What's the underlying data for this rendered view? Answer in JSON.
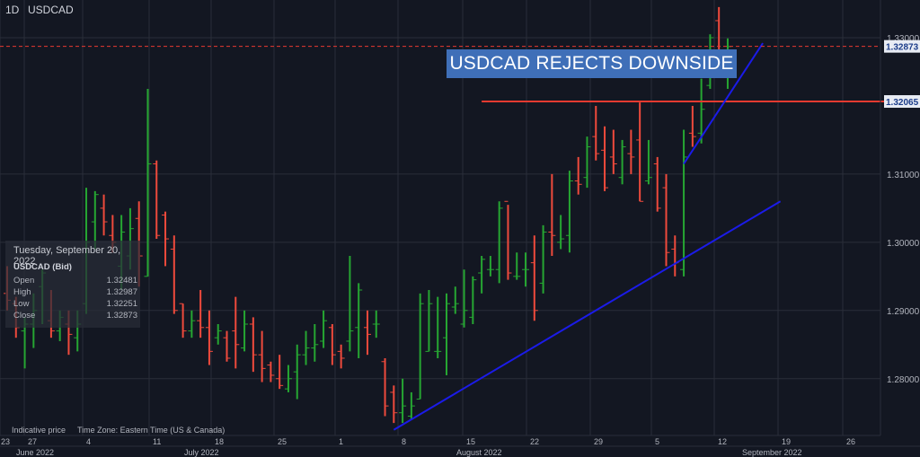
{
  "header": {
    "timeframe": "1D",
    "symbol": "USDCAD"
  },
  "banner": {
    "text": "USDCAD REJECTS DOWNSIDE"
  },
  "ohlc_panel": {
    "date": "Tuesday, September 20, 2022",
    "symbol": "USDCAD (Bid)",
    "rows": [
      {
        "label": "Open",
        "value": "1.32481"
      },
      {
        "label": "High",
        "value": "1.32987"
      },
      {
        "label": "Low",
        "value": "1.32251"
      },
      {
        "label": "Close",
        "value": "1.32873"
      }
    ]
  },
  "footer": {
    "indicative": "Indicative price",
    "timezone": "Time Zone: Eastern Time (US & Canada)"
  },
  "colors": {
    "background": "#131722",
    "up": "#26a632",
    "down": "#ef4a3c",
    "trendline": "#1b1be8",
    "level": "#e83a30",
    "banner": "#3f6fb8"
  },
  "chart_data": {
    "type": "ohlc",
    "symbol": "USDCAD",
    "timeframe": "1D",
    "y_ticks": [
      "1.28000",
      "1.29000",
      "1.30000",
      "1.31000",
      "1.33000"
    ],
    "ylim": [
      1.27,
      1.334
    ],
    "price_tags": [
      {
        "label": "1.32873",
        "value": 1.32873,
        "style": "dashed"
      },
      {
        "label": "1.32065",
        "value": 1.32065,
        "style": "solid"
      }
    ],
    "x_ticks": [
      "23",
      "27",
      "4",
      "11",
      "18",
      "25",
      "1",
      "8",
      "15",
      "22",
      "29",
      "5",
      "12",
      "19",
      "26"
    ],
    "month_labels": [
      "June 2022",
      "July 2022",
      "August 2022",
      "September 2022"
    ],
    "bars": [
      [
        1.2925,
        1.2965,
        1.29,
        1.2915
      ],
      [
        1.291,
        1.292,
        1.286,
        1.2875
      ],
      [
        1.287,
        1.289,
        1.2815,
        1.288
      ],
      [
        1.288,
        1.2925,
        1.2845,
        1.29
      ],
      [
        1.2935,
        1.296,
        1.288,
        1.2955
      ],
      [
        1.2885,
        1.293,
        1.286,
        1.287
      ],
      [
        1.287,
        1.29,
        1.2855,
        1.289
      ],
      [
        1.288,
        1.29,
        1.2835,
        1.2865
      ],
      [
        1.286,
        1.29,
        1.284,
        1.288
      ],
      [
        1.291,
        1.308,
        1.2895,
        1.3
      ],
      [
        1.303,
        1.3075,
        1.299,
        1.307
      ],
      [
        1.305,
        1.307,
        1.301,
        1.303
      ],
      [
        1.301,
        1.304,
        1.2985,
        1.3
      ],
      [
        1.2965,
        1.304,
        1.293,
        1.3015
      ],
      [
        1.298,
        1.305,
        1.296,
        1.302
      ],
      [
        1.3035,
        1.306,
        1.2935,
        1.298
      ],
      [
        1.295,
        1.3225,
        1.295,
        1.3115
      ],
      [
        1.3115,
        1.312,
        1.3005,
        1.301
      ],
      [
        1.304,
        1.3045,
        1.2965,
        1.3005
      ],
      [
        1.299,
        1.301,
        1.2895,
        1.29
      ],
      [
        1.291,
        1.291,
        1.286,
        1.287
      ],
      [
        1.287,
        1.29,
        1.286,
        1.2885
      ],
      [
        1.2885,
        1.293,
        1.286,
        1.2875
      ],
      [
        1.2875,
        1.29,
        1.282,
        1.284
      ],
      [
        1.286,
        1.288,
        1.285,
        1.287
      ],
      [
        1.286,
        1.287,
        1.2825,
        1.283
      ],
      [
        1.287,
        1.292,
        1.2815,
        1.285
      ],
      [
        1.2845,
        1.29,
        1.284,
        1.288
      ],
      [
        1.288,
        1.289,
        1.281,
        1.2835
      ],
      [
        1.2835,
        1.287,
        1.2795,
        1.2815
      ],
      [
        1.282,
        1.2825,
        1.2795,
        1.2805
      ],
      [
        1.28,
        1.2835,
        1.2785,
        1.279
      ],
      [
        1.2785,
        1.282,
        1.278,
        1.28
      ],
      [
        1.281,
        1.285,
        1.277,
        1.2835
      ],
      [
        1.2835,
        1.287,
        1.282,
        1.2845
      ],
      [
        1.2845,
        1.288,
        1.2825,
        1.285
      ],
      [
        1.2855,
        1.29,
        1.2845,
        1.2885
      ],
      [
        1.2875,
        1.288,
        1.282,
        1.2835
      ],
      [
        1.284,
        1.285,
        1.2815,
        1.283
      ],
      [
        1.2855,
        1.298,
        1.284,
        1.287
      ],
      [
        1.2875,
        1.294,
        1.283,
        1.293
      ],
      [
        1.2875,
        1.29,
        1.2835,
        1.2865
      ],
      [
        1.288,
        1.29,
        1.286,
        1.288
      ],
      [
        1.2825,
        1.283,
        1.2745,
        1.276
      ],
      [
        1.278,
        1.279,
        1.2735,
        1.275
      ],
      [
        1.275,
        1.28,
        1.2735,
        1.276
      ],
      [
        1.2745,
        1.278,
        1.274,
        1.276
      ],
      [
        1.277,
        1.2925,
        1.277,
        1.291
      ],
      [
        1.284,
        1.293,
        1.284,
        1.291
      ],
      [
        1.284,
        1.292,
        1.283,
        1.284
      ],
      [
        1.286,
        1.2925,
        1.2805,
        1.291
      ],
      [
        1.2905,
        1.2935,
        1.2895,
        1.291
      ],
      [
        1.288,
        1.296,
        1.2875,
        1.29
      ],
      [
        1.289,
        1.295,
        1.288,
        1.2945
      ],
      [
        1.2955,
        1.298,
        1.2925,
        1.2975
      ],
      [
        1.296,
        1.298,
        1.295,
        1.296
      ],
      [
        1.296,
        1.306,
        1.294,
        1.305
      ],
      [
        1.306,
        1.3055,
        1.2945,
        1.2955
      ],
      [
        1.295,
        1.2985,
        1.2945,
        1.295
      ],
      [
        1.296,
        1.2985,
        1.2935,
        1.296
      ],
      [
        1.297,
        1.301,
        1.2885,
        1.29
      ],
      [
        1.294,
        1.3025,
        1.2925,
        1.3015
      ],
      [
        1.3015,
        1.31,
        1.298,
        1.301
      ],
      [
        1.3,
        1.304,
        1.299,
        1.3005
      ],
      [
        1.301,
        1.3105,
        1.2985,
        1.309
      ],
      [
        1.309,
        1.3125,
        1.307,
        1.3085
      ],
      [
        1.3095,
        1.3155,
        1.308,
        1.314
      ],
      [
        1.3155,
        1.32,
        1.312,
        1.313
      ],
      [
        1.3135,
        1.317,
        1.3075,
        1.308
      ],
      [
        1.3125,
        1.3165,
        1.31,
        1.3115
      ],
      [
        1.3095,
        1.315,
        1.3085,
        1.314
      ],
      [
        1.313,
        1.3165,
        1.31,
        1.3125
      ],
      [
        1.315,
        1.3205,
        1.306,
        1.306
      ],
      [
        1.309,
        1.315,
        1.3085,
        1.3095
      ],
      [
        1.3115,
        1.3125,
        1.3045,
        1.305
      ],
      [
        1.308,
        1.31,
        1.2965,
        1.2985
      ],
      [
        1.299,
        1.301,
        1.295,
        1.297
      ],
      [
        1.296,
        1.3165,
        1.295,
        1.3125
      ],
      [
        1.316,
        1.32,
        1.314,
        1.3155
      ],
      [
        1.316,
        1.324,
        1.3145,
        1.3195
      ],
      [
        1.323,
        1.3305,
        1.3225,
        1.33
      ],
      [
        1.3325,
        1.3345,
        1.3245,
        1.325
      ],
      [
        1.3248,
        1.3299,
        1.3225,
        1.3287
      ]
    ],
    "trendlines": [
      {
        "from": {
          "bar": 44,
          "price": 1.2725
        },
        "to": {
          "bar": 88,
          "price": 1.306
        }
      },
      {
        "from": {
          "bar": 77,
          "price": 1.3115
        },
        "to": {
          "bar": 86,
          "price": 1.3292
        }
      }
    ],
    "levels": [
      {
        "price": 1.32065,
        "from_bar": 54,
        "to_bar": 93
      }
    ]
  }
}
